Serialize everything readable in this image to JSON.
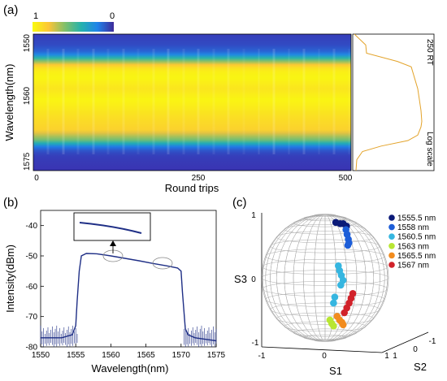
{
  "panels": {
    "a": {
      "label": "(a)",
      "colorbar": {
        "min_label": "1",
        "max_label": "0"
      },
      "side": {
        "text_top": "250 RT",
        "text_bottom": "Log scale"
      }
    },
    "b": {
      "label": "(b)"
    },
    "c": {
      "label": "(c)"
    }
  },
  "colors": {
    "spectrum": "#1f2f86",
    "side_profile": "#e3a32a",
    "sphere_grid": "#aaaaaa"
  },
  "chart_data": [
    {
      "panel": "a",
      "type": "heatmap",
      "xlabel": "Round trips",
      "ylabel": "Wavelength(nm)",
      "xlim": [
        0,
        512
      ],
      "ylim": [
        1575,
        1550
      ],
      "xticks": [
        0,
        250,
        500
      ],
      "yticks": [
        1550,
        1560,
        1575
      ],
      "colorscale": "parula, 1 = yellow, 0 = dark blue",
      "row_profile": {
        "wavelength": [
          1550,
          1552,
          1553.5,
          1554.5,
          1555.5,
          1556.5,
          1558,
          1560,
          1562,
          1565,
          1567.5,
          1569.5,
          1570.5,
          1571.5,
          1572.5,
          1575
        ],
        "intensity": [
          0.05,
          0.08,
          0.15,
          0.45,
          0.8,
          0.95,
          0.98,
          0.92,
          0.98,
          0.9,
          0.85,
          0.55,
          0.2,
          0.08,
          0.05,
          0.03
        ]
      },
      "side_profile": {
        "wavelength": [
          1550,
          1552,
          1553.5,
          1555,
          1556,
          1558,
          1560,
          1562,
          1564,
          1566,
          1567,
          1568.5,
          1569.5,
          1570.5,
          1571.5,
          1573,
          1575
        ],
        "value": [
          0.05,
          0.1,
          0.2,
          0.55,
          0.72,
          0.76,
          0.8,
          0.82,
          0.84,
          0.85,
          0.84,
          0.8,
          0.68,
          0.35,
          0.12,
          0.05,
          0.04
        ]
      }
    },
    {
      "panel": "b",
      "type": "line",
      "xlabel": "Wavelength(nm)",
      "ylabel": "Intensity(dBm)",
      "xlim": [
        1550,
        1575
      ],
      "ylim": [
        -80,
        -35
      ],
      "xticks": [
        1550,
        1555,
        1560,
        1565,
        1570,
        1575
      ],
      "yticks": [
        -40,
        -50,
        -60,
        -70,
        -80
      ],
      "series": [
        {
          "x": [
            1550,
            1553,
            1554.5,
            1555,
            1555.2,
            1555.5,
            1555.8,
            1556.5,
            1558,
            1560,
            1562,
            1564,
            1566,
            1568,
            1569.5,
            1570,
            1570.2,
            1570.6,
            1571,
            1572,
            1573.5,
            1575
          ],
          "y": [
            -77,
            -77,
            -76,
            -73,
            -65,
            -55,
            -50,
            -49.2,
            -49.3,
            -50,
            -50.8,
            -51.6,
            -52.5,
            -53.3,
            -54,
            -55,
            -62,
            -74,
            -76,
            -77,
            -77.5,
            -78
          ]
        }
      ],
      "noise_floor": [
        -80,
        -73
      ]
    },
    {
      "panel": "c",
      "type": "scatter",
      "xlabel": "S1",
      "ylabel": "S2",
      "zlabel": "S3",
      "s1_ticks": [
        "-1",
        "0",
        "1"
      ],
      "s2_ticks": [
        "1",
        "0",
        "-1"
      ],
      "s3_ticks": [
        "1",
        "0",
        "-1"
      ],
      "series": [
        {
          "name": "1555.5 nm",
          "color": "#0b1a78",
          "s1": [
            0.15,
            0.22,
            0.28,
            0.33
          ],
          "s2": [
            0.1,
            0.12,
            0.08,
            0.1
          ],
          "s3": [
            0.92,
            0.9,
            0.9,
            0.86
          ]
        },
        {
          "name": "1558  nm",
          "color": "#1d5ed8",
          "s1": [
            0.32,
            0.34,
            0.36,
            0.37,
            0.35
          ],
          "s2": [
            0.1,
            0.1,
            0.1,
            0.1,
            0.1
          ],
          "s3": [
            0.8,
            0.72,
            0.64,
            0.58,
            0.54
          ]
        },
        {
          "name": "1560.5 nm",
          "color": "#36b6e0",
          "s1": [
            0.22,
            0.24,
            0.27,
            0.3,
            0.26,
            0.16,
            0.14
          ],
          "s2": [
            0.0,
            0.0,
            0.0,
            0.0,
            0.0,
            0.0,
            0.0
          ],
          "s3": [
            0.2,
            0.12,
            0.04,
            -0.04,
            -0.12,
            -0.32,
            -0.42
          ]
        },
        {
          "name": "1563  nm",
          "color": "#b8e633",
          "s1": [
            0.08,
            0.11,
            0.14
          ],
          "s2": [
            0.0,
            0.0,
            0.0
          ],
          "s3": [
            -0.7,
            -0.76,
            -0.8
          ]
        },
        {
          "name": "1565.5 nm",
          "color": "#f28c1e",
          "s1": [
            0.2,
            0.24,
            0.28,
            0.3
          ],
          "s2": [
            0.0,
            0.0,
            0.0,
            0.0
          ],
          "s3": [
            -0.64,
            -0.7,
            -0.74,
            -0.78
          ]
        },
        {
          "name": "1567  nm",
          "color": "#d1222a",
          "s1": [
            0.32,
            0.36,
            0.4,
            0.43,
            0.46
          ],
          "s2": [
            0.0,
            0.0,
            0.0,
            0.0,
            0.0
          ],
          "s3": [
            -0.58,
            -0.5,
            -0.42,
            -0.34,
            -0.26
          ]
        }
      ]
    }
  ]
}
